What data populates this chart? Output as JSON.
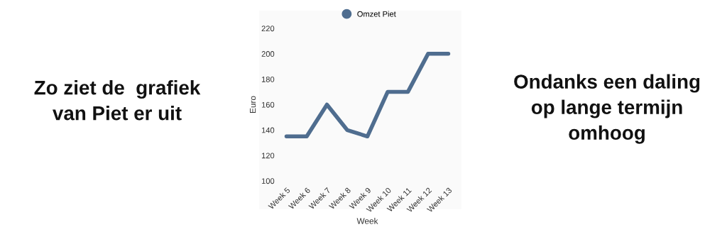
{
  "chart_data": {
    "type": "line",
    "xlabel": "Week",
    "ylabel": "Euro",
    "categories": [
      "Week 5",
      "Week 6",
      "Week 7",
      "Week 8",
      "Week 9",
      "Week 10",
      "Week 11",
      "Week 12",
      "Week 13"
    ],
    "series": [
      {
        "name": "Omzet Piet",
        "color": "#4f6d8f",
        "values": [
          135,
          135,
          160,
          140,
          135,
          170,
          170,
          200,
          200
        ]
      }
    ],
    "ylim": [
      100,
      220
    ],
    "yticks": [
      100,
      120,
      140,
      160,
      180,
      200,
      220
    ],
    "grid": false,
    "legend": "top",
    "marker": "none",
    "line_style": "solid",
    "annotations": [
      "Zo ziet de  grafiek\nvan Piet er uit",
      "Ondanks een daling\nop lange termijn\nomhoog"
    ]
  }
}
